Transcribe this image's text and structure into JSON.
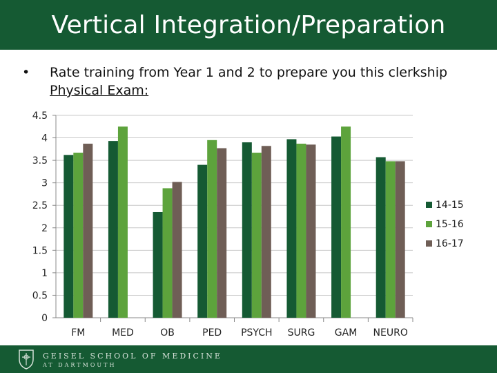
{
  "header": {
    "title": "Vertical Integration/Preparation"
  },
  "body": {
    "bullet": "•",
    "line1": "Rate training from Year 1 and 2 to prepare you this clerkship",
    "line2": "Physical Exam:"
  },
  "chart_data": {
    "type": "bar",
    "categories": [
      "FM",
      "MED",
      "OB",
      "PED",
      "PSYCH",
      "SURG",
      "GAM",
      "NEURO"
    ],
    "series": [
      {
        "name": "14-15",
        "color": "#155a33",
        "values": [
          3.62,
          3.93,
          2.35,
          3.4,
          3.9,
          3.97,
          4.03,
          3.57
        ]
      },
      {
        "name": "15-16",
        "color": "#5da33c",
        "values": [
          3.67,
          4.25,
          2.88,
          3.95,
          3.67,
          3.87,
          4.25,
          3.48
        ]
      },
      {
        "name": "16-17",
        "color": "#6f5e56",
        "values": [
          3.87,
          null,
          3.02,
          3.77,
          3.82,
          3.85,
          null,
          3.48
        ]
      }
    ],
    "y_ticks": [
      "0",
      "0.5",
      "1",
      "1.5",
      "2",
      "2.5",
      "3",
      "3.5",
      "4",
      "4.5"
    ],
    "ylim": [
      0,
      4.5
    ],
    "grid": true,
    "legend": "right"
  },
  "footer": {
    "line1": "GEISEL SCHOOL OF MEDICINE",
    "line2": "AT DARTMOUTH",
    "crest": "shield-crest-icon"
  }
}
